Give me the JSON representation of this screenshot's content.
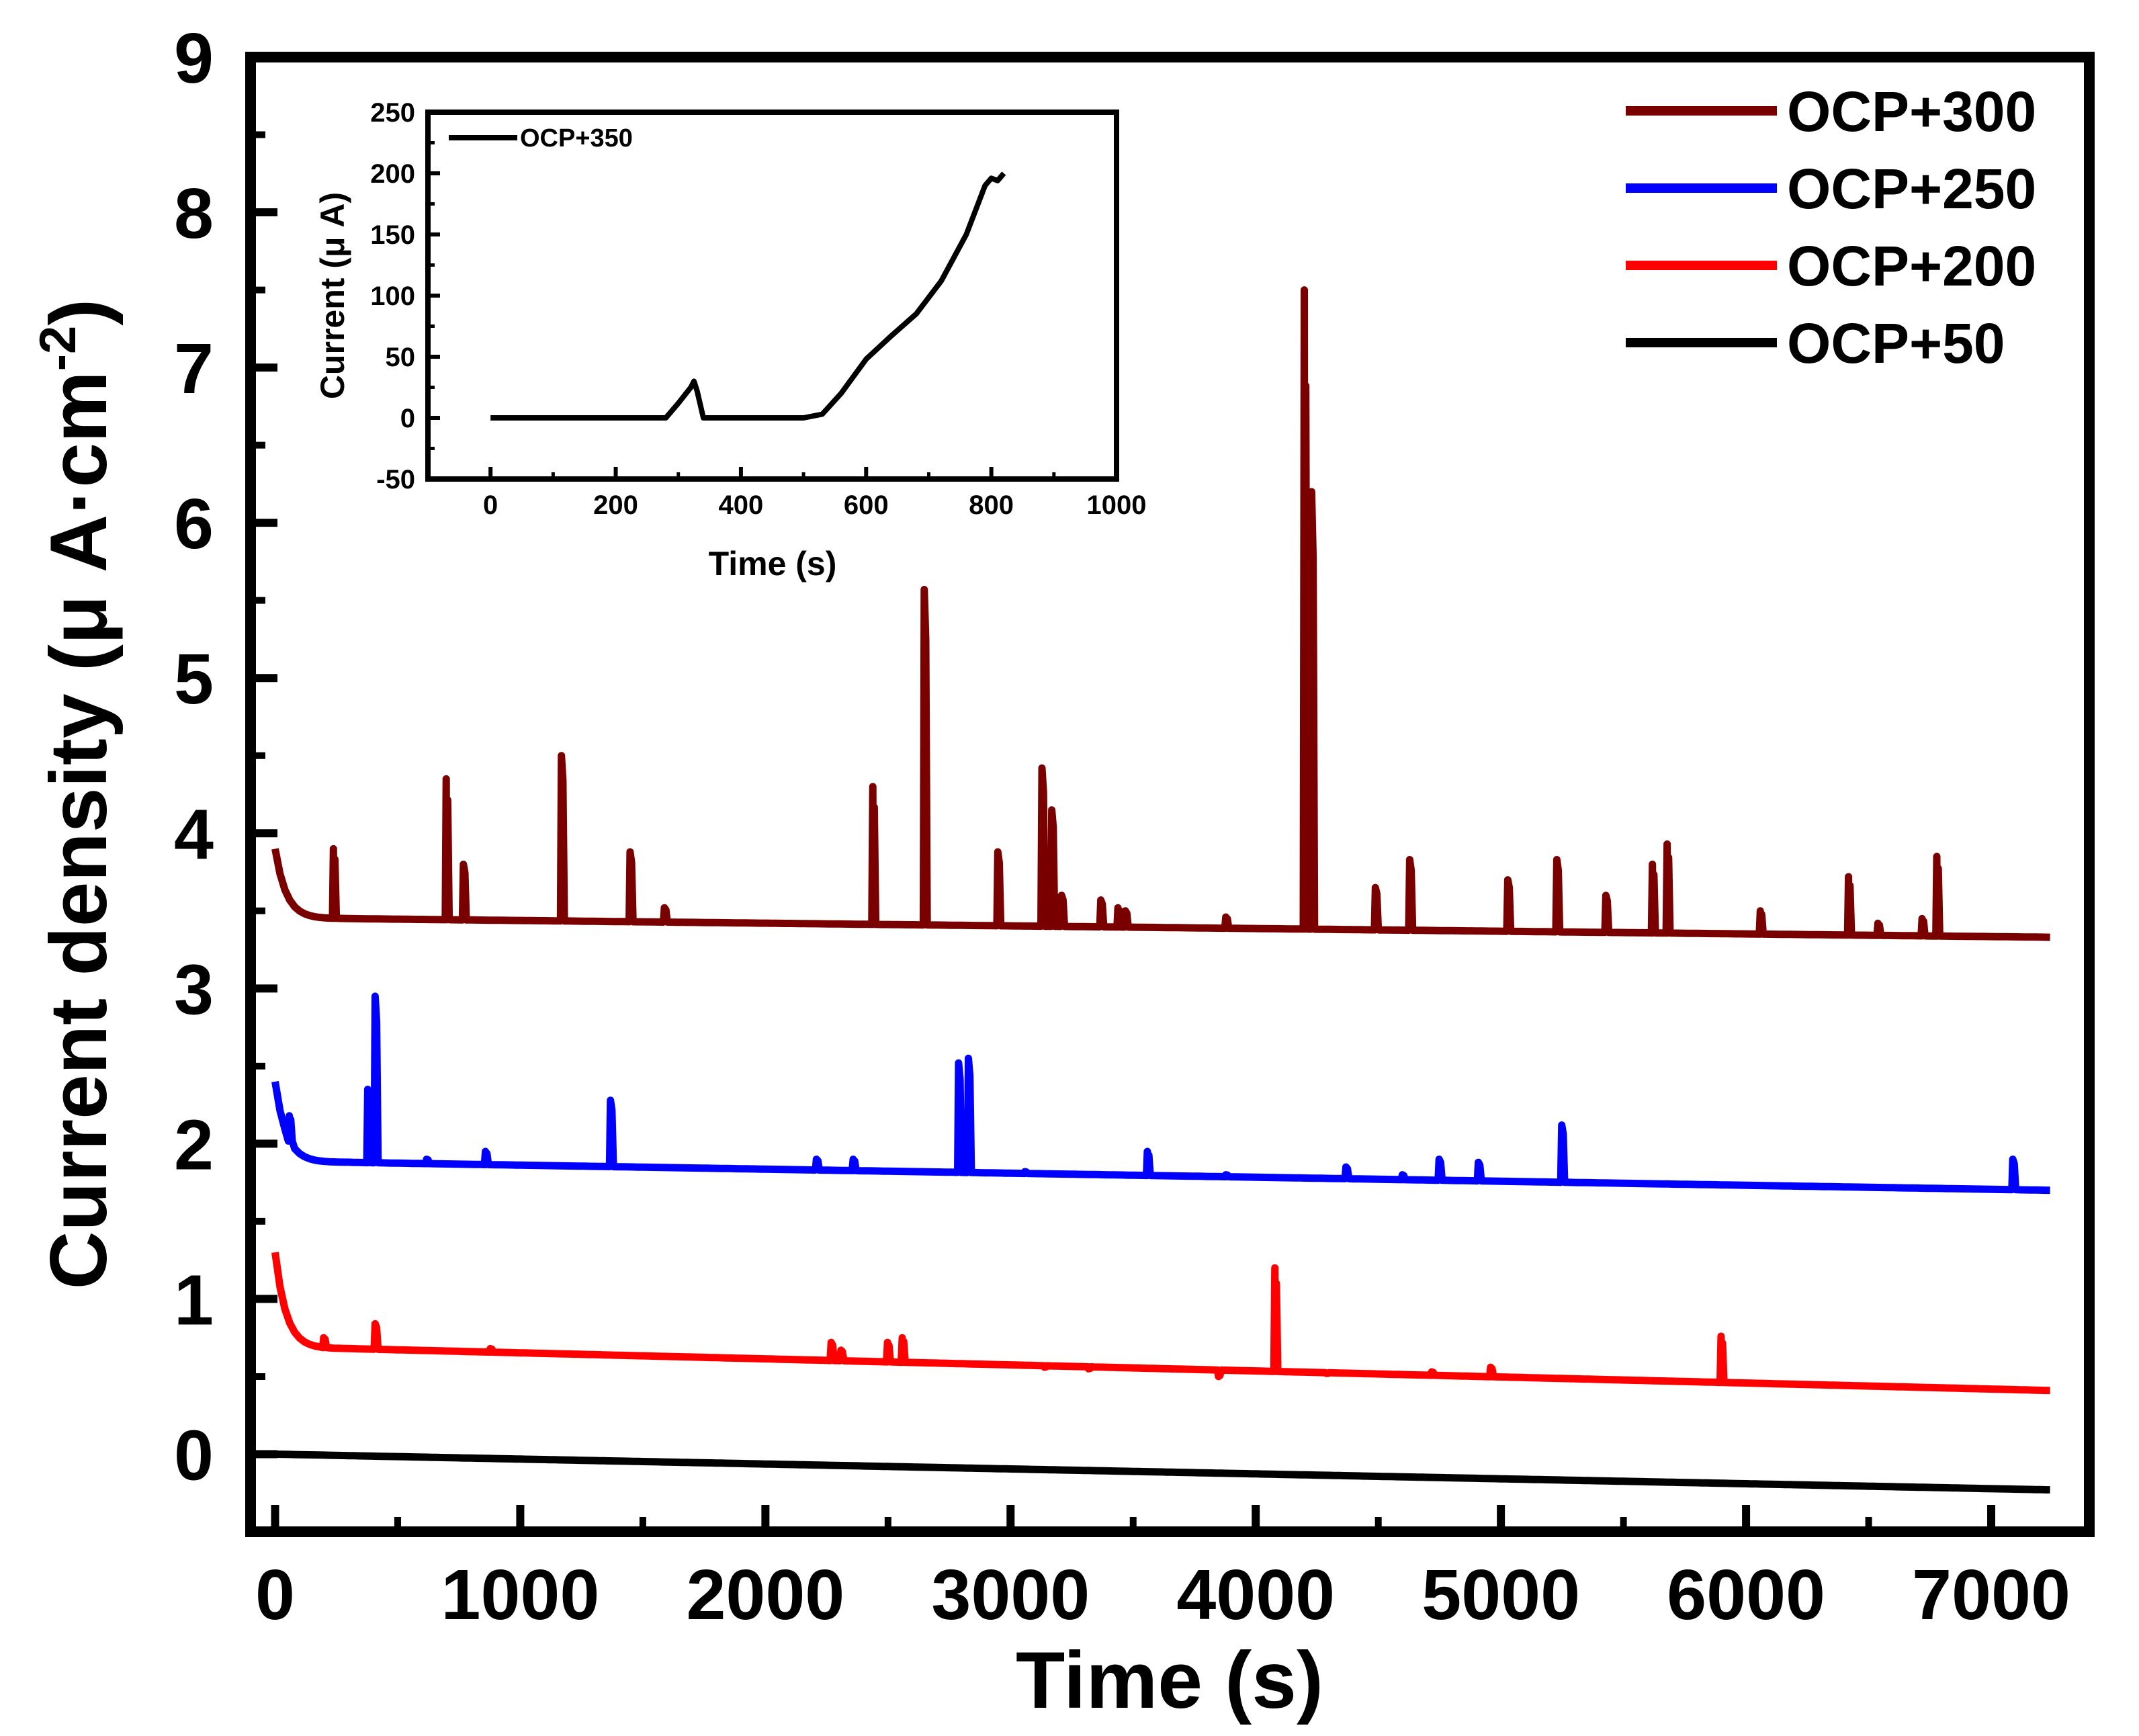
{
  "chart_data": [
    {
      "type": "line",
      "title": "",
      "xlabel": "Time (s)",
      "ylabel_prefix": "Current density (",
      "ylabel_mu": "μ",
      "ylabel_unit": " A·cm",
      "ylabel_sup": "-2",
      "ylabel_suffix": ")",
      "xlim": [
        -100,
        7400
      ],
      "ylim": [
        -0.5,
        9
      ],
      "xticks": [
        0,
        1000,
        2000,
        3000,
        4000,
        5000,
        6000,
        7000
      ],
      "yticks": [
        0,
        1,
        2,
        3,
        4,
        5,
        6,
        7,
        8,
        9
      ],
      "legend_position": "top-right",
      "series": [
        {
          "name": "OCP+300",
          "color": "#7a0000",
          "baseline": {
            "start": 3.9,
            "after_decay": 3.45,
            "end": 3.33
          },
          "spikes": [
            [
              240,
              3.9
            ],
            [
              700,
              4.35
            ],
            [
              770,
              3.8
            ],
            [
              1170,
              4.5
            ],
            [
              1450,
              3.88
            ],
            [
              1590,
              3.52
            ],
            [
              2440,
              4.3
            ],
            [
              2650,
              5.57
            ],
            [
              2950,
              3.88
            ],
            [
              3130,
              4.42
            ],
            [
              3170,
              4.15
            ],
            [
              3210,
              3.6
            ],
            [
              3370,
              3.57
            ],
            [
              3440,
              3.52
            ],
            [
              3470,
              3.5
            ],
            [
              3880,
              3.46
            ],
            [
              4200,
              7.5
            ],
            [
              4230,
              6.2
            ],
            [
              4490,
              3.65
            ],
            [
              4630,
              3.83
            ],
            [
              5030,
              3.7
            ],
            [
              5230,
              3.83
            ],
            [
              5430,
              3.6
            ],
            [
              5620,
              3.8
            ],
            [
              5680,
              3.93
            ],
            [
              6060,
              3.5
            ],
            [
              6420,
              3.72
            ],
            [
              6540,
              3.42
            ],
            [
              6720,
              3.45
            ],
            [
              6780,
              3.85
            ]
          ]
        },
        {
          "name": "OCP+250",
          "color": "#0000ff",
          "baseline": {
            "start": 2.4,
            "after_decay": 1.88,
            "end": 1.7
          },
          "spikes": [
            [
              60,
              2.18
            ],
            [
              380,
              2.35
            ],
            [
              410,
              2.95
            ],
            [
              620,
              1.9
            ],
            [
              860,
              1.95
            ],
            [
              1370,
              2.28
            ],
            [
              2210,
              1.9
            ],
            [
              2360,
              1.9
            ],
            [
              2790,
              2.52
            ],
            [
              2830,
              2.55
            ],
            [
              3060,
              1.82
            ],
            [
              3560,
              1.95
            ],
            [
              3880,
              1.8
            ],
            [
              4370,
              1.85
            ],
            [
              4600,
              1.8
            ],
            [
              4750,
              1.9
            ],
            [
              4910,
              1.88
            ],
            [
              5250,
              2.12
            ],
            [
              7090,
              1.9
            ]
          ]
        },
        {
          "name": "OCP+200",
          "color": "#ff0000",
          "baseline": {
            "start": 1.3,
            "after_decay": 0.68,
            "end": 0.41
          },
          "spikes": [
            [
              200,
              0.75
            ],
            [
              410,
              0.84
            ],
            [
              880,
              0.68
            ],
            [
              2270,
              0.72
            ],
            [
              2310,
              0.67
            ],
            [
              2500,
              0.72
            ],
            [
              2560,
              0.75
            ],
            [
              3140,
              0.56
            ],
            [
              3320,
              0.55
            ],
            [
              3850,
              0.5
            ],
            [
              4080,
              1.2
            ],
            [
              4290,
              0.52
            ],
            [
              4720,
              0.53
            ],
            [
              4960,
              0.56
            ],
            [
              5900,
              0.76
            ]
          ]
        },
        {
          "name": "OCP+50",
          "color": "#000000",
          "baseline": {
            "start": 0.0,
            "after_decay": 0.0,
            "end": -0.23
          },
          "spikes": []
        }
      ]
    },
    {
      "type": "line",
      "title": "",
      "xlabel": "Time (s)",
      "ylabel_prefix": "Current (",
      "ylabel_mu": "μ",
      "ylabel_suffix": " A)",
      "xlim": [
        -100,
        1000
      ],
      "ylim": [
        -50,
        250
      ],
      "xticks": [
        0,
        200,
        400,
        600,
        800,
        1000
      ],
      "yticks": [
        -50,
        0,
        50,
        100,
        150,
        200,
        250
      ],
      "legend_position": "top-left",
      "series": [
        {
          "name": "OCP+350",
          "color": "#000000",
          "x": [
            0,
            280,
            300,
            320,
            325,
            330,
            340,
            500,
            530,
            560,
            600,
            640,
            680,
            720,
            760,
            790,
            800,
            810,
            820
          ],
          "y": [
            0,
            0,
            12,
            25,
            30,
            22,
            0,
            0,
            3,
            20,
            48,
            67,
            85,
            112,
            150,
            190,
            196,
            194,
            200
          ]
        }
      ]
    }
  ]
}
